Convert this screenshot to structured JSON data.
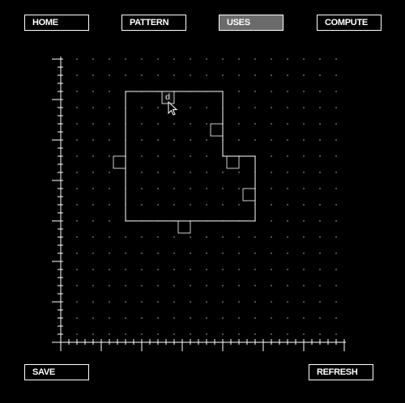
{
  "nav": {
    "home_label": "HOME",
    "pattern_label": "PATTERN",
    "uses_label": "USES",
    "compute_label": "COMPUTE",
    "active": "uses"
  },
  "actions": {
    "save_label": "SAVE",
    "refresh_label": "REFRESH"
  },
  "canvas": {
    "marker_label": "d",
    "grid_color": "#ffffff",
    "active_tab_color": "#6b6b6b"
  },
  "icons": {
    "cursor": "arrow-cursor-icon"
  }
}
